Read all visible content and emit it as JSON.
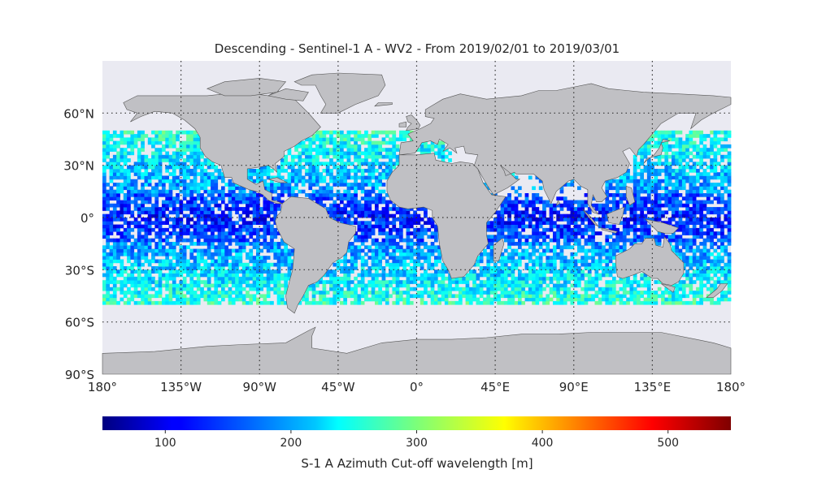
{
  "title": "Descending - Sentinel-1 A - WV2 - From 2019/02/01 to 2019/03/01",
  "colors": {
    "ocean": "#eaeaf2",
    "land": "#c0c0c4",
    "coast": "#555555",
    "grid": "#333333"
  },
  "map": {
    "projection": "equirectangular",
    "lon_range": [
      -180,
      180
    ],
    "lat_range": [
      -90,
      90
    ],
    "lat_ticks": [
      {
        "value": 60,
        "label": "60°N"
      },
      {
        "value": 30,
        "label": "30°N"
      },
      {
        "value": 0,
        "label": "0°"
      },
      {
        "value": -30,
        "label": "30°S"
      },
      {
        "value": -60,
        "label": "60°S"
      },
      {
        "value": -90,
        "label": "90°S"
      }
    ],
    "lon_ticks": [
      {
        "value": -180,
        "label": "180°"
      },
      {
        "value": -135,
        "label": "135°W"
      },
      {
        "value": -90,
        "label": "90°W"
      },
      {
        "value": -45,
        "label": "45°W"
      },
      {
        "value": 0,
        "label": "0°"
      },
      {
        "value": 45,
        "label": "45°E"
      },
      {
        "value": 90,
        "label": "90°E"
      },
      {
        "value": 135,
        "label": "135°E"
      },
      {
        "value": 180,
        "label": "180°"
      }
    ],
    "data_lat_range": [
      -50,
      50
    ],
    "cell_size_deg": 2
  },
  "colorbar": {
    "label": "S-1 A Azimuth Cut-off wavelength [m]",
    "range": [
      50,
      550
    ],
    "ticks": [
      {
        "value": 100,
        "label": "100"
      },
      {
        "value": 200,
        "label": "200"
      },
      {
        "value": 300,
        "label": "300"
      },
      {
        "value": 400,
        "label": "400"
      },
      {
        "value": 500,
        "label": "500"
      }
    ],
    "colormap": "jet"
  }
}
